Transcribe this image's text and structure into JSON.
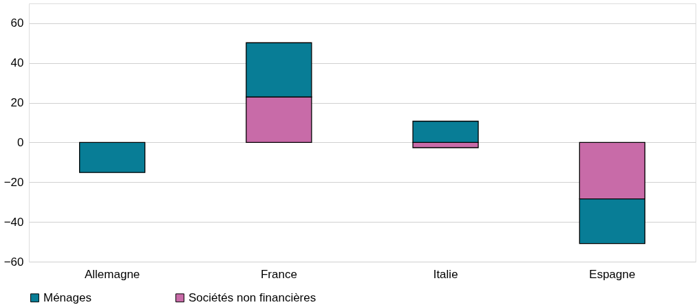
{
  "chart_data": {
    "type": "bar",
    "stacked": true,
    "categories": [
      "Allemagne",
      "France",
      "Italie",
      "Espagne"
    ],
    "series": [
      {
        "name": "Sociétés non financières",
        "color": "#c86ba8",
        "values": [
          null,
          22.9,
          -2.6,
          -28.4
        ]
      },
      {
        "name": "Ménages",
        "color": "#087d96",
        "values": [
          -15.1,
          27.3,
          10.7,
          -22.5
        ]
      }
    ],
    "ylim": [
      -60,
      70
    ],
    "yticks": [
      -60,
      -40,
      -20,
      0,
      20,
      40,
      60
    ],
    "grid": "y",
    "legend": "bottom"
  }
}
